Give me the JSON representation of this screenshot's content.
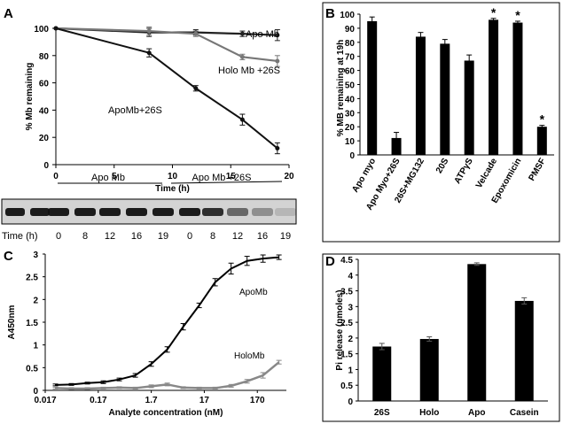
{
  "chart_data": [
    {
      "panel": "A",
      "type": "line",
      "ylabel": "% Mb remaining",
      "xlabel": "Time (h)",
      "xlim": [
        0,
        20
      ],
      "ylim": [
        0,
        100
      ],
      "xticks": [
        0,
        5,
        10,
        15,
        20
      ],
      "yticks": [
        0,
        20,
        40,
        60,
        80,
        100
      ],
      "series": [
        {
          "name": "Apo Mb",
          "color": "#222222",
          "x": [
            0,
            8,
            12,
            16,
            19
          ],
          "y": [
            100,
            97,
            97,
            96,
            95
          ],
          "err": [
            1,
            3,
            2,
            2,
            4
          ]
        },
        {
          "name": "Holo Mb +26S",
          "color": "#777777",
          "x": [
            0,
            8,
            12,
            16,
            19
          ],
          "y": [
            100,
            98,
            96,
            79,
            76
          ],
          "err": [
            1,
            3,
            2,
            2,
            4
          ]
        },
        {
          "name": "ApoMb+26S",
          "color": "#111111",
          "x": [
            0,
            8,
            12,
            16,
            19
          ],
          "y": [
            100,
            82,
            56,
            33,
            12
          ],
          "err": [
            1,
            3,
            2,
            4,
            4
          ]
        }
      ],
      "blot": {
        "group_labels": [
          "Apo Mb",
          "Apo Mb +26S"
        ],
        "row_label": "Time (h)",
        "lanes": [
          "0",
          "8",
          "12",
          "16",
          "19",
          "0",
          "8",
          "12",
          "16",
          "19"
        ],
        "band_intensity": [
          0.95,
          0.95,
          0.95,
          0.95,
          0.95,
          0.95,
          0.85,
          0.55,
          0.35,
          0.15
        ]
      }
    },
    {
      "panel": "B",
      "type": "bar",
      "ylabel": "% MB remaining at 19h",
      "ylim": [
        0,
        100
      ],
      "yticks": [
        0,
        10,
        20,
        30,
        40,
        50,
        60,
        70,
        80,
        90,
        100
      ],
      "categories": [
        "Apo myo",
        "Apo Myo+26S",
        "26S+MG132",
        "20S",
        "ATPγS",
        "Velcade",
        "Epoxomicin",
        "PMSF"
      ],
      "values": [
        95,
        12,
        84,
        79,
        67,
        96,
        94,
        20
      ],
      "err": [
        3,
        4,
        3,
        3,
        4,
        1,
        1,
        1
      ],
      "significance": [
        "",
        "",
        "",
        "",
        "",
        "*",
        "*",
        "*"
      ]
    },
    {
      "panel": "C",
      "type": "line",
      "ylabel": "A450nm",
      "xlabel": "Analyte concentration (nM)",
      "xscale": "log",
      "xlim": [
        0.017,
        600
      ],
      "ylim": [
        0,
        3
      ],
      "xticks": [
        "0.017",
        "0.17",
        "1.7",
        "17",
        "170"
      ],
      "yticks": [
        "0",
        "0.5",
        "1",
        "1.5",
        "2",
        "2.5",
        "3"
      ],
      "series": [
        {
          "name": "ApoMb",
          "color": "#000000",
          "x": [
            0.0265,
            0.053,
            0.106,
            0.212,
            0.424,
            0.85,
            1.7,
            3.4,
            6.8,
            13.6,
            27.2,
            54.4,
            108.8,
            217.6,
            435
          ],
          "y": [
            0.12,
            0.13,
            0.16,
            0.18,
            0.24,
            0.33,
            0.58,
            0.9,
            1.4,
            1.87,
            2.38,
            2.68,
            2.85,
            2.9,
            2.93
          ],
          "err": [
            0.02,
            0.02,
            0.02,
            0.03,
            0.03,
            0.04,
            0.05,
            0.06,
            0.07,
            0.05,
            0.08,
            0.12,
            0.1,
            0.08,
            0.05
          ]
        },
        {
          "name": "HoloMb",
          "color": "#888888",
          "x": [
            0.0265,
            0.053,
            0.106,
            0.212,
            0.424,
            0.85,
            1.7,
            3.4,
            6.8,
            13.6,
            27.2,
            54.4,
            108.8,
            217.6,
            435
          ],
          "y": [
            0.05,
            0.04,
            0.04,
            0.05,
            0.06,
            0.05,
            0.09,
            0.13,
            0.06,
            0.05,
            0.05,
            0.1,
            0.2,
            0.33,
            0.62
          ],
          "err": [
            0.02,
            0.02,
            0.02,
            0.02,
            0.02,
            0.02,
            0.03,
            0.03,
            0.02,
            0.02,
            0.02,
            0.03,
            0.04,
            0.06,
            0.04
          ]
        }
      ]
    },
    {
      "panel": "D",
      "type": "bar",
      "ylabel": "Pi release (nmoles)",
      "ylim": [
        0,
        4.5
      ],
      "yticks": [
        "0",
        "0.5",
        "1",
        "1.5",
        "2",
        "2.5",
        "3",
        "3.5",
        "4",
        "4.5"
      ],
      "categories": [
        "26S",
        "Holo",
        "Apo",
        "Casein"
      ],
      "values": [
        1.73,
        1.97,
        4.35,
        3.18
      ],
      "err": [
        0.1,
        0.07,
        0.04,
        0.1
      ]
    }
  ],
  "panel_labels": [
    "A",
    "B",
    "C",
    "D"
  ]
}
